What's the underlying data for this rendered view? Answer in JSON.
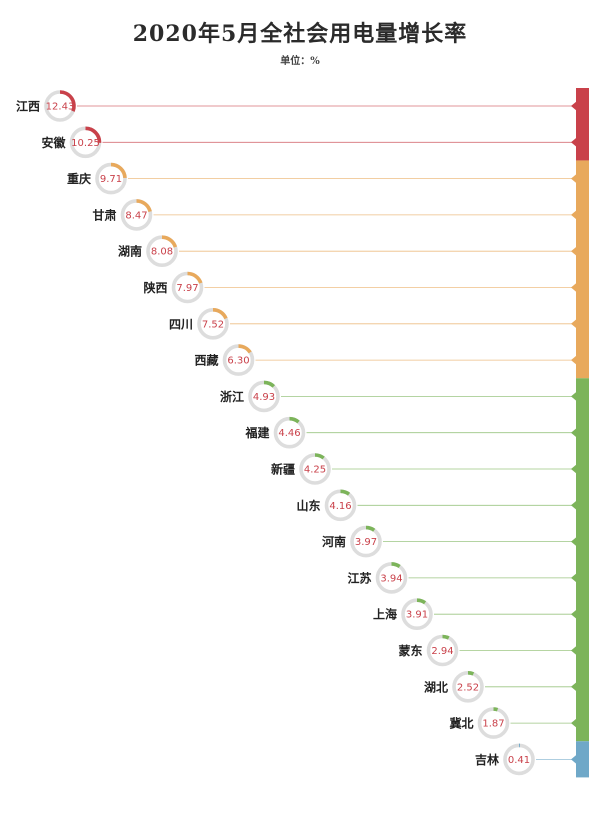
{
  "chart_data": {
    "type": "bar",
    "title": "2020年5月全社会用电量增长率",
    "unit": "单位：%",
    "source": "",
    "categories": [
      "江西",
      "安徽",
      "重庆",
      "甘肃",
      "湖南",
      "陕西",
      "四川",
      "西藏",
      "浙江",
      "福建",
      "新疆",
      "山东",
      "河南",
      "江苏",
      "上海",
      "蒙东",
      "湖北",
      "冀北",
      "吉林"
    ],
    "values": [
      12.43,
      10.25,
      9.71,
      8.47,
      8.08,
      7.97,
      7.52,
      6.3,
      4.93,
      4.46,
      4.25,
      4.16,
      3.97,
      3.94,
      3.91,
      2.94,
      2.52,
      1.87,
      0.41
    ],
    "value_labels": [
      "12.43",
      "10.25",
      "9.71",
      "8.47",
      "8.08",
      "7.97",
      "7.52",
      "6.30",
      "4.93",
      "4.46",
      "4.25",
      "4.16",
      "3.97",
      "3.94",
      "3.91",
      "2.94",
      "2.52",
      "1.87",
      "0.41"
    ],
    "ring_max": 40,
    "groups": [
      {
        "from": 0,
        "to": 1,
        "color": "#c9414a"
      },
      {
        "from": 2,
        "to": 7,
        "color": "#e8a95c"
      },
      {
        "from": 8,
        "to": 17,
        "color": "#7cb45a"
      },
      {
        "from": 18,
        "to": 18,
        "color": "#6fa8c8"
      }
    ],
    "ring_track_color": "#dddddd",
    "value_color": "#c9414a"
  }
}
